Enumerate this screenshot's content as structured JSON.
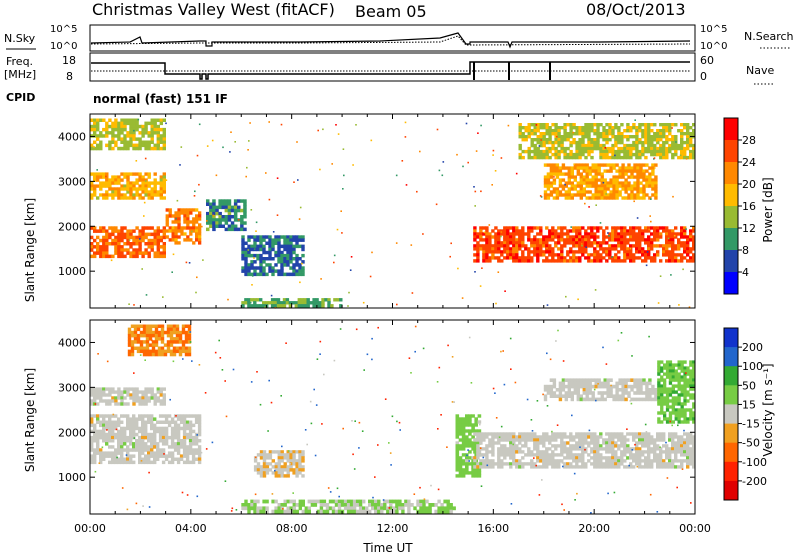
{
  "header": {
    "title": "Christmas Valley West (fitACF)",
    "beam": "Beam 05",
    "date": "08/Oct/2013"
  },
  "panels": {
    "nsky": {
      "label": "N.Sky",
      "tick_top": "10^5",
      "tick_bottom": "10^0",
      "right_label": "N.Search",
      "right_tick_top": "10^5",
      "right_tick_bottom": "10^0"
    },
    "freq": {
      "label_line1": "Freq.",
      "label_line2": "[MHz]",
      "tick_top": "18",
      "tick_bottom": "8",
      "right_label": "Nave",
      "right_tick_top": "60",
      "right_tick_bottom": "0"
    },
    "cpid": {
      "label": "CPID",
      "mode_text": "normal (fast) 151 IF"
    }
  },
  "axes": {
    "ylabel": "Slant Range [km]",
    "yticks": [
      "1000",
      "2000",
      "3000",
      "4000"
    ],
    "xlabel": "Time UT",
    "xticks": [
      "00:00",
      "04:00",
      "08:00",
      "12:00",
      "16:00",
      "20:00",
      "00:00"
    ]
  },
  "colorbars": {
    "power": {
      "label": "Power [dB]",
      "ticks": [
        "28",
        "24",
        "20",
        "16",
        "12",
        "8",
        "4"
      ],
      "colors": [
        "#ff0000",
        "#ff4400",
        "#ff8800",
        "#ffbb00",
        "#99bb33",
        "#339966",
        "#2244aa",
        "#0000ff"
      ]
    },
    "velocity": {
      "label": "Velocity [m s⁻¹]",
      "ticks": [
        "200",
        "100",
        "50",
        "15",
        "-15",
        "-50",
        "-100",
        "-200"
      ],
      "colors": [
        "#1133cc",
        "#2266cc",
        "#33aa33",
        "#77cc44",
        "#c8c8c0",
        "#f0a020",
        "#ff6600",
        "#ff2200",
        "#e00000"
      ]
    }
  },
  "chart_data": [
    {
      "type": "heatmap",
      "name": "power",
      "x": [
        "00:00",
        "04:00",
        "08:00",
        "12:00",
        "16:00",
        "20:00",
        "00:00"
      ],
      "xlim_hours": [
        0,
        24
      ],
      "ylim": [
        180,
        4500
      ],
      "colorbar_range_db": [
        0,
        30
      ],
      "bands": [
        {
          "t": [
            0,
            3.0
          ],
          "range": [
            1300,
            2000
          ],
          "db": 24
        },
        {
          "t": [
            3.0,
            4.4
          ],
          "range": [
            1600,
            2400
          ],
          "db": 22
        },
        {
          "t": [
            0,
            3.0
          ],
          "range": [
            2600,
            3200
          ],
          "db": 18
        },
        {
          "t": [
            0,
            3.0
          ],
          "range": [
            3700,
            4400
          ],
          "db": 14
        },
        {
          "t": [
            4.6,
            6.2
          ],
          "range": [
            1900,
            2600
          ],
          "db": 8
        },
        {
          "t": [
            6.0,
            8.5
          ],
          "range": [
            900,
            1800
          ],
          "db": 6
        },
        {
          "t": [
            6.0,
            10.0
          ],
          "range": [
            200,
            400
          ],
          "db": 10
        },
        {
          "t": [
            15.2,
            24
          ],
          "range": [
            1200,
            2000
          ],
          "db": 26
        },
        {
          "t": [
            18.0,
            22.5
          ],
          "range": [
            2600,
            3400
          ],
          "db": 20
        },
        {
          "t": [
            17.0,
            24
          ],
          "range": [
            3500,
            4300
          ],
          "db": 14
        }
      ]
    },
    {
      "type": "heatmap",
      "name": "velocity",
      "x": [
        "00:00",
        "04:00",
        "08:00",
        "12:00",
        "16:00",
        "20:00",
        "00:00"
      ],
      "xlim_hours": [
        0,
        24
      ],
      "ylim": [
        180,
        4500
      ],
      "colorbar_range": [
        -200,
        200
      ],
      "bands": [
        {
          "t": [
            0,
            4.4
          ],
          "range": [
            1300,
            2400
          ],
          "v": 0
        },
        {
          "t": [
            0,
            3.0
          ],
          "range": [
            2600,
            3000
          ],
          "v": 0
        },
        {
          "t": [
            1.5,
            4.0
          ],
          "range": [
            3700,
            4400
          ],
          "v": -50
        },
        {
          "t": [
            6.5,
            8.5
          ],
          "range": [
            1000,
            1600
          ],
          "v": -10
        },
        {
          "t": [
            6.0,
            14.5
          ],
          "range": [
            200,
            500
          ],
          "v": 20
        },
        {
          "t": [
            14.5,
            15.5
          ],
          "range": [
            1000,
            2400
          ],
          "v": 30
        },
        {
          "t": [
            15.2,
            24
          ],
          "range": [
            1200,
            2000
          ],
          "v": 0
        },
        {
          "t": [
            18.0,
            22.5
          ],
          "range": [
            2700,
            3200
          ],
          "v": 0
        },
        {
          "t": [
            22.5,
            24
          ],
          "range": [
            2200,
            3600
          ],
          "v": 40
        }
      ]
    }
  ]
}
